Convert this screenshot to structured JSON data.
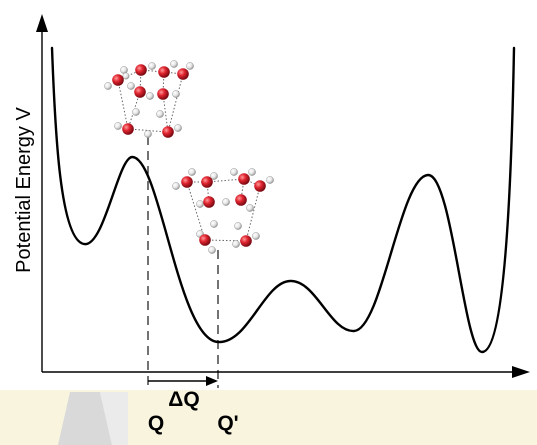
{
  "figure": {
    "y_axis_label": "Potential Energy V",
    "delta_label": "ΔQ",
    "q_label": "Q",
    "q_prime_label": "Q'"
  },
  "molecules": [
    {
      "name": "water-cluster-top",
      "atoms": "oxygen red, hydrogen white",
      "bonds": "dotted"
    },
    {
      "name": "water-cluster-middle",
      "atoms": "oxygen red, hydrogen white",
      "bonds": "dotted"
    }
  ],
  "colors": {
    "oxygen": "#d41c2a",
    "hydrogen": "#e8e8e8",
    "line": "#000000",
    "bottom_band": "#f7f3dc",
    "bottom_shadow": "#cfcfcf"
  }
}
